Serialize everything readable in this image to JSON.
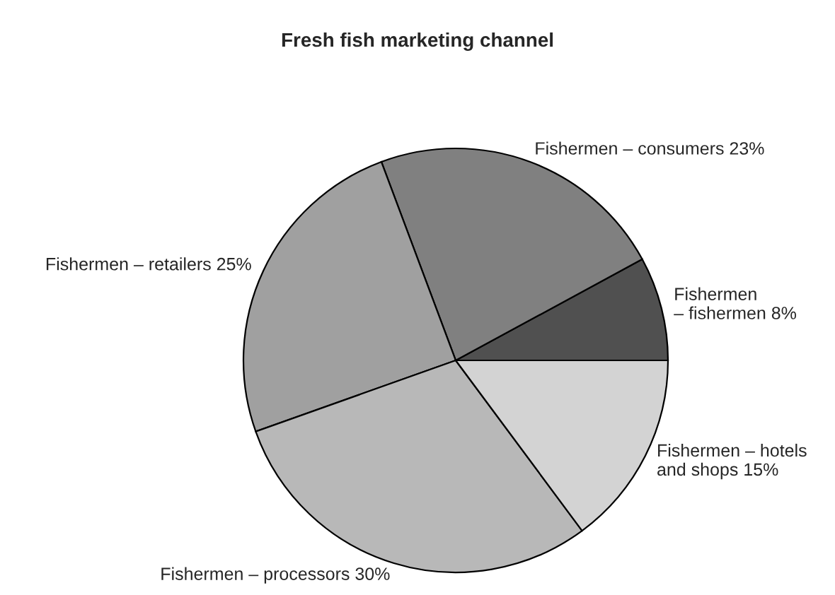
{
  "chart_data": {
    "type": "pie",
    "title": "Fresh fish marketing channel",
    "categories": [
      "Fishermen\n– fishermen",
      "Fishermen – consumers",
      "Fishermen – retailers",
      "Fishermen – processors",
      "Fishermen – hotels\nand shops"
    ],
    "values": [
      8,
      23,
      25,
      30,
      15
    ],
    "value_labels": [
      "8%",
      "23%",
      "25%",
      "30%",
      "15%"
    ],
    "colors": [
      "#505050",
      "#808080",
      "#a0a0a0",
      "#b8b8b8",
      "#d3d3d3"
    ]
  }
}
